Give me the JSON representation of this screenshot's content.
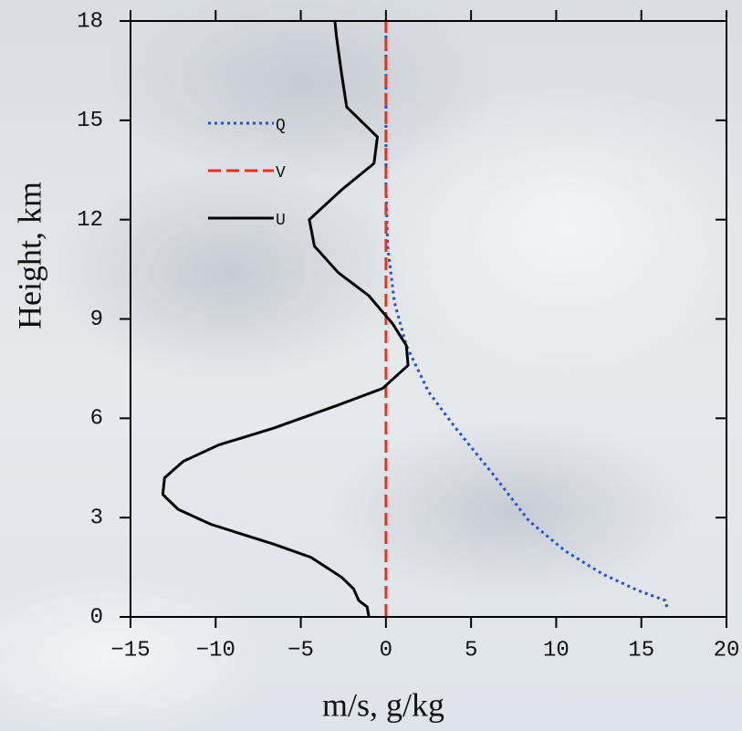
{
  "chart_data": {
    "type": "line",
    "x_label": "m/s, g/kg",
    "y_label": "Height, km",
    "xlim": [
      -15,
      20
    ],
    "xticks": [
      {
        "value": -15,
        "label": "−15"
      },
      {
        "value": -10,
        "label": "−10"
      },
      {
        "value": -5,
        "label": "−5"
      },
      0,
      5,
      10,
      15,
      20
    ],
    "ylim": [
      0,
      18
    ],
    "yticks": [
      0,
      3,
      6,
      9,
      12,
      15,
      18
    ],
    "series": [
      {
        "name": "Q",
        "color": "#1f4fe6",
        "dash": "dotted",
        "x": [
          16.5,
          16.4,
          14.8,
          12.7,
          10.5,
          8.4,
          6.3,
          4.1,
          2.5,
          1.2,
          0.5,
          0.1,
          0,
          0
        ],
        "y": [
          0.3,
          0.5,
          0.8,
          1.3,
          2,
          2.9,
          4.3,
          5.7,
          6.8,
          8.2,
          9.5,
          11.2,
          13,
          18
        ]
      },
      {
        "name": "V",
        "color": "#ff2a10",
        "dash": "dashed",
        "x": [
          0,
          0
        ],
        "y": [
          0,
          18
        ]
      },
      {
        "name": "U",
        "color": "#000000",
        "dash": "solid",
        "x": [
          -1,
          -1.1,
          -1.6,
          -1.9,
          -2.6,
          -4.4,
          -6.6,
          -10.3,
          -12.2,
          -13.1,
          -13,
          -11.9,
          -9.8,
          -6.6,
          -2.8,
          -0.2,
          1.3,
          1.2,
          0.4,
          -1,
          -2.8,
          -4.2,
          -4.5,
          -2.6,
          -0.7,
          -0.5,
          -2.3,
          -2.6,
          -2.9,
          -3
        ],
        "y": [
          0,
          0.3,
          0.5,
          0.85,
          1.2,
          1.8,
          2.2,
          2.8,
          3.25,
          3.7,
          4.2,
          4.7,
          5.2,
          5.7,
          6.4,
          6.9,
          7.6,
          8.2,
          8.85,
          9.7,
          10.4,
          11.2,
          12,
          12.9,
          13.7,
          14.5,
          15.4,
          16.4,
          17.5,
          18
        ]
      }
    ]
  }
}
